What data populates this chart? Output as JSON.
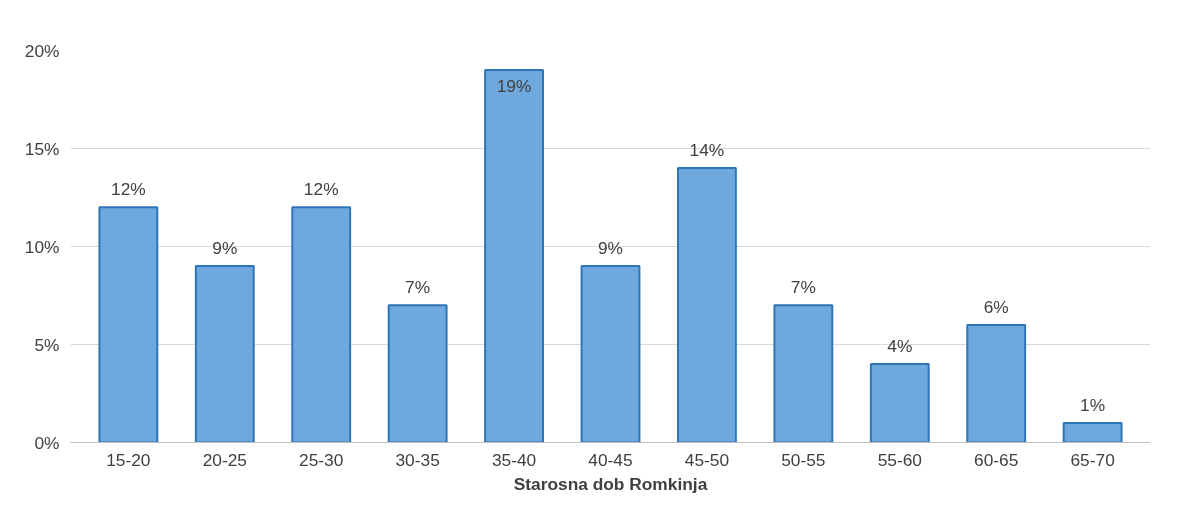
{
  "chart_data": {
    "type": "bar",
    "xlabel": "Starosna dob Romkinja",
    "categories": [
      "15-20",
      "20-25",
      "25-30",
      "30-35",
      "35-40",
      "40-45",
      "45-50",
      "50-55",
      "55-60",
      "60-65",
      "65-70"
    ],
    "values": [
      12,
      9,
      12,
      7,
      19,
      9,
      14,
      7,
      4,
      6,
      1
    ],
    "value_labels": [
      "12%",
      "9%",
      "12%",
      "7%",
      "19%",
      "9%",
      "14%",
      "7%",
      "4%",
      "6%",
      "1%"
    ],
    "color": "#6fa8dc",
    "ylim": [
      0,
      20
    ],
    "yticks": [
      {
        "value": 0,
        "label": "0%"
      },
      {
        "value": 5,
        "label": "5%"
      },
      {
        "value": 10,
        "label": "10%"
      },
      {
        "value": 15,
        "label": "15%"
      },
      {
        "value": 20,
        "label": "20%"
      }
    ],
    "grid": "y"
  }
}
